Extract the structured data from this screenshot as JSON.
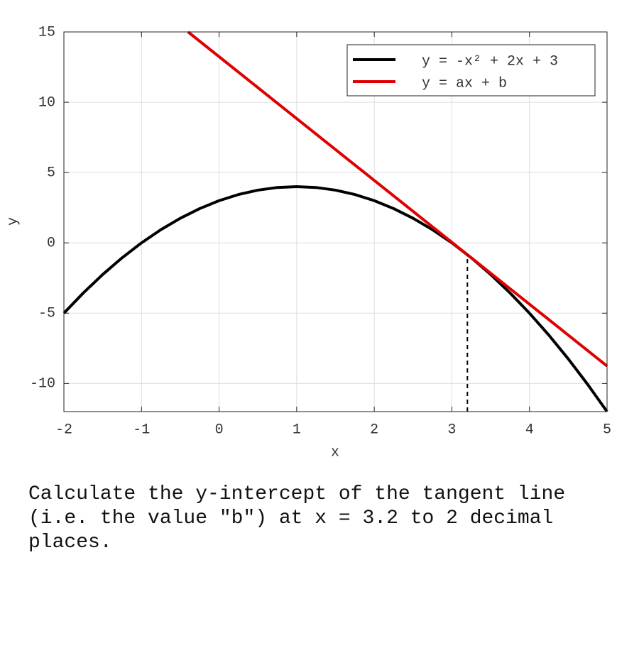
{
  "chart_data": {
    "type": "line",
    "xlabel": "x",
    "ylabel": "y",
    "xlim": [
      -2,
      5
    ],
    "ylim": [
      -12,
      15
    ],
    "xticks": [
      -2,
      -1,
      0,
      1,
      2,
      3,
      4,
      5
    ],
    "yticks": [
      -10,
      -5,
      0,
      5,
      10,
      15
    ],
    "grid": true,
    "legend": "upper right",
    "series": [
      {
        "name": "y = -x² + 2x + 3",
        "color": "#000000",
        "style": "solid",
        "x": [
          -2,
          -1.75,
          -1.5,
          -1.25,
          -1,
          -0.75,
          -0.5,
          -0.25,
          0,
          0.25,
          0.5,
          0.75,
          1,
          1.25,
          1.5,
          1.75,
          2,
          2.25,
          2.5,
          2.75,
          3,
          3.25,
          3.5,
          3.75,
          4,
          4.25,
          4.5,
          4.75,
          5
        ],
        "values": [
          -5,
          -3.5625,
          -2.25,
          -1.0625,
          0,
          0.9375,
          1.75,
          2.4375,
          3,
          3.4375,
          3.75,
          3.9375,
          4,
          3.9375,
          3.75,
          3.4375,
          3,
          2.4375,
          1.75,
          0.9375,
          0,
          -1.0625,
          -2.25,
          -3.5625,
          -5,
          -6.5625,
          -8.25,
          -10.0625,
          -12
        ]
      },
      {
        "name": "y = ax + b",
        "color": "#e00000",
        "style": "solid",
        "x": [
          -0.4,
          5
        ],
        "values": [
          15,
          -8.76
        ]
      },
      {
        "color": "#000000",
        "style": "dashed",
        "x": [
          3.2,
          3.2
        ],
        "values": [
          -12,
          -0.84
        ]
      }
    ]
  },
  "question": "Calculate the y-intercept of the tangent line (i.e. the value \"b\") at x = 3.2 to 2 decimal places."
}
